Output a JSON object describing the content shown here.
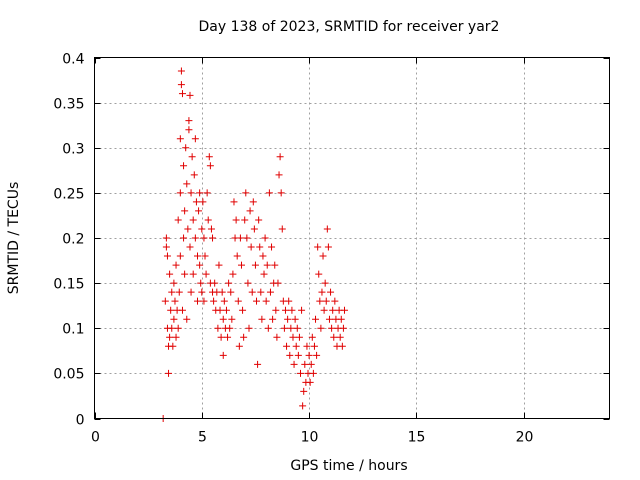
{
  "chart_data": {
    "type": "scatter",
    "title": "Day 138 of 2023, SRMTID for receiver yar2",
    "xlabel": "GPS time / hours",
    "ylabel": "SRMTID / TECUs",
    "xlim": [
      0,
      24
    ],
    "ylim": [
      0,
      0.4
    ],
    "xticks": [
      0,
      5,
      10,
      15,
      20
    ],
    "xtick_labels": [
      "0",
      "5",
      "10",
      "15",
      "20"
    ],
    "yticks": [
      0,
      0.05,
      0.1,
      0.15,
      0.2,
      0.25,
      0.3,
      0.35,
      0.4
    ],
    "ytick_labels": [
      "0",
      "0.05",
      "0.1",
      "0.15",
      "0.2",
      "0.25",
      "0.3",
      "0.35",
      "0.4"
    ],
    "grid": true,
    "marker_color": "#e00000",
    "series": [
      {
        "name": "SRMTID",
        "marker": "plus",
        "points": [
          [
            3.2,
            0.0
          ],
          [
            3.3,
            0.13
          ],
          [
            3.35,
            0.2
          ],
          [
            3.35,
            0.19
          ],
          [
            3.4,
            0.18
          ],
          [
            3.4,
            0.1
          ],
          [
            3.45,
            0.08
          ],
          [
            3.45,
            0.05
          ],
          [
            3.5,
            0.16
          ],
          [
            3.5,
            0.09
          ],
          [
            3.55,
            0.12
          ],
          [
            3.6,
            0.1
          ],
          [
            3.6,
            0.14
          ],
          [
            3.65,
            0.08
          ],
          [
            3.7,
            0.11
          ],
          [
            3.7,
            0.15
          ],
          [
            3.75,
            0.13
          ],
          [
            3.8,
            0.09
          ],
          [
            3.8,
            0.17
          ],
          [
            3.85,
            0.12
          ],
          [
            3.9,
            0.22
          ],
          [
            3.9,
            0.1
          ],
          [
            3.95,
            0.14
          ],
          [
            4.0,
            0.31
          ],
          [
            4.0,
            0.25
          ],
          [
            4.0,
            0.18
          ],
          [
            4.05,
            0.385
          ],
          [
            4.05,
            0.37
          ],
          [
            4.1,
            0.36
          ],
          [
            4.1,
            0.12
          ],
          [
            4.15,
            0.28
          ],
          [
            4.15,
            0.2
          ],
          [
            4.2,
            0.23
          ],
          [
            4.2,
            0.16
          ],
          [
            4.25,
            0.3
          ],
          [
            4.3,
            0.26
          ],
          [
            4.3,
            0.11
          ],
          [
            4.35,
            0.21
          ],
          [
            4.4,
            0.33
          ],
          [
            4.4,
            0.32
          ],
          [
            4.45,
            0.358
          ],
          [
            4.45,
            0.19
          ],
          [
            4.5,
            0.25
          ],
          [
            4.5,
            0.14
          ],
          [
            4.55,
            0.29
          ],
          [
            4.6,
            0.22
          ],
          [
            4.6,
            0.16
          ],
          [
            4.65,
            0.27
          ],
          [
            4.7,
            0.31
          ],
          [
            4.7,
            0.2
          ],
          [
            4.75,
            0.24
          ],
          [
            4.8,
            0.18
          ],
          [
            4.8,
            0.13
          ],
          [
            4.85,
            0.23
          ],
          [
            4.9,
            0.25
          ],
          [
            4.9,
            0.17
          ],
          [
            4.95,
            0.15
          ],
          [
            5.0,
            0.21
          ],
          [
            5.0,
            0.14
          ],
          [
            5.05,
            0.24
          ],
          [
            5.1,
            0.2
          ],
          [
            5.1,
            0.13
          ],
          [
            5.15,
            0.18
          ],
          [
            5.2,
            0.16
          ],
          [
            5.25,
            0.25
          ],
          [
            5.3,
            0.22
          ],
          [
            5.35,
            0.29
          ],
          [
            5.4,
            0.28
          ],
          [
            5.4,
            0.15
          ],
          [
            5.45,
            0.21
          ],
          [
            5.5,
            0.2
          ],
          [
            5.5,
            0.14
          ],
          [
            5.55,
            0.13
          ],
          [
            5.6,
            0.15
          ],
          [
            5.65,
            0.12
          ],
          [
            5.7,
            0.14
          ],
          [
            5.75,
            0.1
          ],
          [
            5.8,
            0.17
          ],
          [
            5.85,
            0.12
          ],
          [
            5.9,
            0.09
          ],
          [
            5.95,
            0.14
          ],
          [
            6.0,
            0.11
          ],
          [
            6.0,
            0.07
          ],
          [
            6.05,
            0.13
          ],
          [
            6.1,
            0.1
          ],
          [
            6.15,
            0.12
          ],
          [
            6.2,
            0.09
          ],
          [
            6.25,
            0.15
          ],
          [
            6.3,
            0.1
          ],
          [
            6.35,
            0.14
          ],
          [
            6.4,
            0.11
          ],
          [
            6.45,
            0.16
          ],
          [
            6.5,
            0.24
          ],
          [
            6.55,
            0.2
          ],
          [
            6.6,
            0.22
          ],
          [
            6.65,
            0.18
          ],
          [
            6.7,
            0.13
          ],
          [
            6.75,
            0.08
          ],
          [
            6.8,
            0.2
          ],
          [
            6.85,
            0.17
          ],
          [
            6.9,
            0.12
          ],
          [
            6.95,
            0.09
          ],
          [
            7.0,
            0.22
          ],
          [
            7.05,
            0.25
          ],
          [
            7.1,
            0.2
          ],
          [
            7.15,
            0.15
          ],
          [
            7.2,
            0.1
          ],
          [
            7.25,
            0.23
          ],
          [
            7.3,
            0.19
          ],
          [
            7.35,
            0.14
          ],
          [
            7.4,
            0.24
          ],
          [
            7.45,
            0.21
          ],
          [
            7.5,
            0.17
          ],
          [
            7.55,
            0.13
          ],
          [
            7.6,
            0.06
          ],
          [
            7.65,
            0.22
          ],
          [
            7.7,
            0.19
          ],
          [
            7.75,
            0.14
          ],
          [
            7.8,
            0.11
          ],
          [
            7.85,
            0.18
          ],
          [
            7.9,
            0.16
          ],
          [
            7.95,
            0.2
          ],
          [
            8.0,
            0.13
          ],
          [
            8.05,
            0.17
          ],
          [
            8.1,
            0.1
          ],
          [
            8.15,
            0.25
          ],
          [
            8.2,
            0.14
          ],
          [
            8.25,
            0.19
          ],
          [
            8.3,
            0.11
          ],
          [
            8.35,
            0.15
          ],
          [
            8.4,
            0.17
          ],
          [
            8.45,
            0.12
          ],
          [
            8.5,
            0.09
          ],
          [
            8.55,
            0.15
          ],
          [
            8.6,
            0.27
          ],
          [
            8.65,
            0.29
          ],
          [
            8.7,
            0.25
          ],
          [
            8.75,
            0.21
          ],
          [
            8.8,
            0.13
          ],
          [
            8.85,
            0.1
          ],
          [
            8.9,
            0.12
          ],
          [
            8.95,
            0.08
          ],
          [
            9.0,
            0.11
          ],
          [
            9.05,
            0.13
          ],
          [
            9.1,
            0.07
          ],
          [
            9.15,
            0.1
          ],
          [
            9.2,
            0.12
          ],
          [
            9.25,
            0.09
          ],
          [
            9.3,
            0.06
          ],
          [
            9.35,
            0.11
          ],
          [
            9.4,
            0.08
          ],
          [
            9.45,
            0.1
          ],
          [
            9.5,
            0.07
          ],
          [
            9.55,
            0.09
          ],
          [
            9.6,
            0.05
          ],
          [
            9.65,
            0.12
          ],
          [
            9.7,
            0.014
          ],
          [
            9.75,
            0.03
          ],
          [
            9.8,
            0.06
          ],
          [
            9.85,
            0.04
          ],
          [
            9.9,
            0.08
          ],
          [
            9.95,
            0.05
          ],
          [
            10.0,
            0.07
          ],
          [
            10.05,
            0.04
          ],
          [
            10.1,
            0.06
          ],
          [
            10.15,
            0.09
          ],
          [
            10.2,
            0.05
          ],
          [
            10.25,
            0.08
          ],
          [
            10.3,
            0.11
          ],
          [
            10.35,
            0.07
          ],
          [
            10.4,
            0.19
          ],
          [
            10.45,
            0.16
          ],
          [
            10.5,
            0.13
          ],
          [
            10.55,
            0.1
          ],
          [
            10.6,
            0.14
          ],
          [
            10.65,
            0.18
          ],
          [
            10.7,
            0.12
          ],
          [
            10.75,
            0.15
          ],
          [
            10.8,
            0.13
          ],
          [
            10.85,
            0.21
          ],
          [
            10.9,
            0.19
          ],
          [
            10.95,
            0.11
          ],
          [
            11.0,
            0.14
          ],
          [
            11.05,
            0.1
          ],
          [
            11.1,
            0.12
          ],
          [
            11.15,
            0.09
          ],
          [
            11.2,
            0.13
          ],
          [
            11.25,
            0.11
          ],
          [
            11.3,
            0.08
          ],
          [
            11.35,
            0.1
          ],
          [
            11.4,
            0.12
          ],
          [
            11.45,
            0.09
          ],
          [
            11.5,
            0.11
          ],
          [
            11.55,
            0.08
          ],
          [
            11.6,
            0.1
          ],
          [
            11.65,
            0.12
          ]
        ]
      }
    ]
  }
}
